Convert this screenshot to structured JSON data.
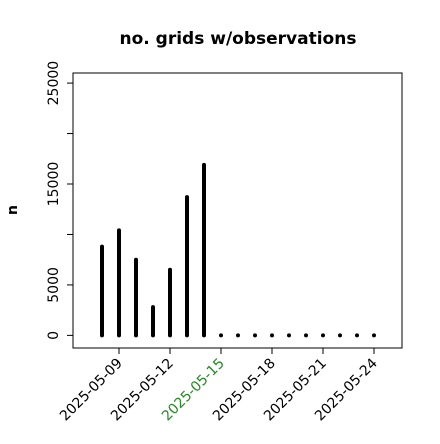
{
  "chart_data": {
    "type": "bar",
    "title": "no. grids w/observations",
    "xlabel": "",
    "ylabel": "n",
    "x": [
      "2025-05-08",
      "2025-05-09",
      "2025-05-10",
      "2025-05-11",
      "2025-05-12",
      "2025-05-13",
      "2025-05-14",
      "2025-05-15",
      "2025-05-16",
      "2025-05-17",
      "2025-05-18",
      "2025-05-19",
      "2025-05-20",
      "2025-05-21",
      "2025-05-22",
      "2025-05-23",
      "2025-05-24"
    ],
    "values": [
      8800,
      10400,
      7500,
      2800,
      6500,
      13700,
      16900,
      0,
      0,
      0,
      0,
      0,
      0,
      0,
      0,
      0,
      0
    ],
    "ylim": [
      -1250,
      26000
    ],
    "yticks": [
      0,
      5000,
      10000,
      15000,
      20000,
      25000
    ],
    "ytick_labels": [
      "0",
      "5000",
      "",
      "15000",
      "",
      "25000"
    ],
    "xtick_labels": [
      {
        "date": "2025-05-09",
        "label": "2025-05-09",
        "color": "#000000"
      },
      {
        "date": "2025-05-12",
        "label": "2025-05-12",
        "color": "#000000"
      },
      {
        "date": "2025-05-15",
        "label": "2025-05-15",
        "color": "#228B22"
      },
      {
        "date": "2025-05-18",
        "label": "2025-05-18",
        "color": "#000000"
      },
      {
        "date": "2025-05-21",
        "label": "2025-05-21",
        "color": "#000000"
      },
      {
        "date": "2025-05-24",
        "label": "2025-05-24",
        "color": "#000000"
      }
    ],
    "bar_color": "#000000",
    "grid": false
  }
}
